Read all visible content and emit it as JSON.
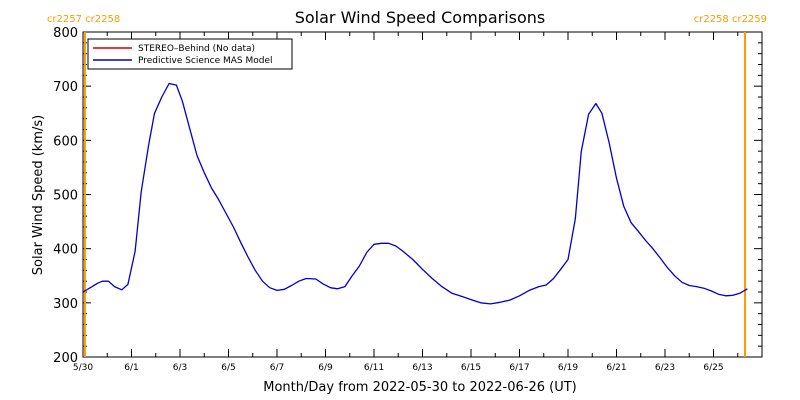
{
  "chart_data": {
    "type": "line",
    "title": "Solar Wind Speed Comparisons",
    "xlabel": "Month/Day from 2022-05-30 to 2022-06-26 (UT)",
    "ylabel": "Solar Wind Speed (km/s)",
    "ylim": [
      200,
      800
    ],
    "xlim_days": [
      0,
      28
    ],
    "yticks": [
      200,
      300,
      400,
      500,
      600,
      700,
      800
    ],
    "xticks": [
      {
        "day": 0,
        "label": "5/30"
      },
      {
        "day": 2,
        "label": "6/1"
      },
      {
        "day": 4,
        "label": "6/3"
      },
      {
        "day": 6,
        "label": "6/5"
      },
      {
        "day": 8,
        "label": "6/7"
      },
      {
        "day": 10,
        "label": "6/9"
      },
      {
        "day": 12,
        "label": "6/11"
      },
      {
        "day": 14,
        "label": "6/13"
      },
      {
        "day": 16,
        "label": "6/15"
      },
      {
        "day": 18,
        "label": "6/17"
      },
      {
        "day": 20,
        "label": "6/19"
      },
      {
        "day": 22,
        "label": "6/21"
      },
      {
        "day": 24,
        "label": "6/23"
      },
      {
        "day": 26,
        "label": "6/25"
      }
    ],
    "legend": {
      "placement": "top-left",
      "entries": [
        {
          "label": "STEREO–Behind (No data)",
          "color": "#cc0000"
        },
        {
          "label": "Predictive Science MAS Model",
          "color": "#0000cc"
        }
      ]
    },
    "carrington_markers": [
      {
        "day": 0.08,
        "labels": [
          "cr2257",
          "cr2258"
        ],
        "label_side": "right"
      },
      {
        "day": 27.3,
        "labels": [
          "cr2258",
          "cr2259"
        ],
        "label_side": "left"
      }
    ],
    "marker_color": "#ff9900",
    "series": [
      {
        "name": "Predictive Science MAS Model",
        "color": "#0000cc",
        "points": [
          [
            0.0,
            320
          ],
          [
            0.3,
            328
          ],
          [
            0.6,
            336
          ],
          [
            0.8,
            340
          ],
          [
            1.05,
            340
          ],
          [
            1.3,
            330
          ],
          [
            1.6,
            324
          ],
          [
            1.85,
            334
          ],
          [
            2.15,
            395
          ],
          [
            2.4,
            505
          ],
          [
            2.7,
            590
          ],
          [
            2.95,
            650
          ],
          [
            3.25,
            680
          ],
          [
            3.55,
            705
          ],
          [
            3.85,
            702
          ],
          [
            4.1,
            672
          ],
          [
            4.4,
            622
          ],
          [
            4.7,
            572
          ],
          [
            5.0,
            540
          ],
          [
            5.3,
            512
          ],
          [
            5.6,
            490
          ],
          [
            5.9,
            465
          ],
          [
            6.2,
            440
          ],
          [
            6.5,
            412
          ],
          [
            6.8,
            385
          ],
          [
            7.1,
            360
          ],
          [
            7.4,
            340
          ],
          [
            7.7,
            328
          ],
          [
            8.0,
            323
          ],
          [
            8.3,
            325
          ],
          [
            8.6,
            332
          ],
          [
            8.9,
            340
          ],
          [
            9.2,
            345
          ],
          [
            9.6,
            344
          ],
          [
            9.9,
            335
          ],
          [
            10.2,
            328
          ],
          [
            10.5,
            326
          ],
          [
            10.8,
            330
          ],
          [
            11.1,
            350
          ],
          [
            11.4,
            368
          ],
          [
            11.7,
            393
          ],
          [
            12.0,
            408
          ],
          [
            12.3,
            410
          ],
          [
            12.6,
            410
          ],
          [
            12.9,
            405
          ],
          [
            13.2,
            395
          ],
          [
            13.6,
            380
          ],
          [
            14.0,
            362
          ],
          [
            14.4,
            345
          ],
          [
            14.8,
            330
          ],
          [
            15.2,
            318
          ],
          [
            15.6,
            312
          ],
          [
            16.0,
            306
          ],
          [
            16.4,
            300
          ],
          [
            16.8,
            298
          ],
          [
            17.2,
            301
          ],
          [
            17.6,
            305
          ],
          [
            18.0,
            313
          ],
          [
            18.4,
            323
          ],
          [
            18.8,
            330
          ],
          [
            19.1,
            333
          ],
          [
            19.4,
            345
          ],
          [
            19.7,
            362
          ],
          [
            20.0,
            380
          ],
          [
            20.3,
            455
          ],
          [
            20.55,
            580
          ],
          [
            20.85,
            648
          ],
          [
            21.15,
            668
          ],
          [
            21.4,
            650
          ],
          [
            21.7,
            595
          ],
          [
            22.0,
            530
          ],
          [
            22.3,
            478
          ],
          [
            22.6,
            448
          ],
          [
            22.9,
            432
          ],
          [
            23.2,
            415
          ],
          [
            23.5,
            400
          ],
          [
            23.8,
            383
          ],
          [
            24.1,
            365
          ],
          [
            24.4,
            350
          ],
          [
            24.7,
            338
          ],
          [
            25.0,
            332
          ],
          [
            25.3,
            330
          ],
          [
            25.6,
            327
          ],
          [
            25.9,
            322
          ],
          [
            26.2,
            316
          ],
          [
            26.5,
            313
          ],
          [
            26.8,
            314
          ],
          [
            27.1,
            318
          ],
          [
            27.4,
            326
          ]
        ]
      }
    ]
  }
}
